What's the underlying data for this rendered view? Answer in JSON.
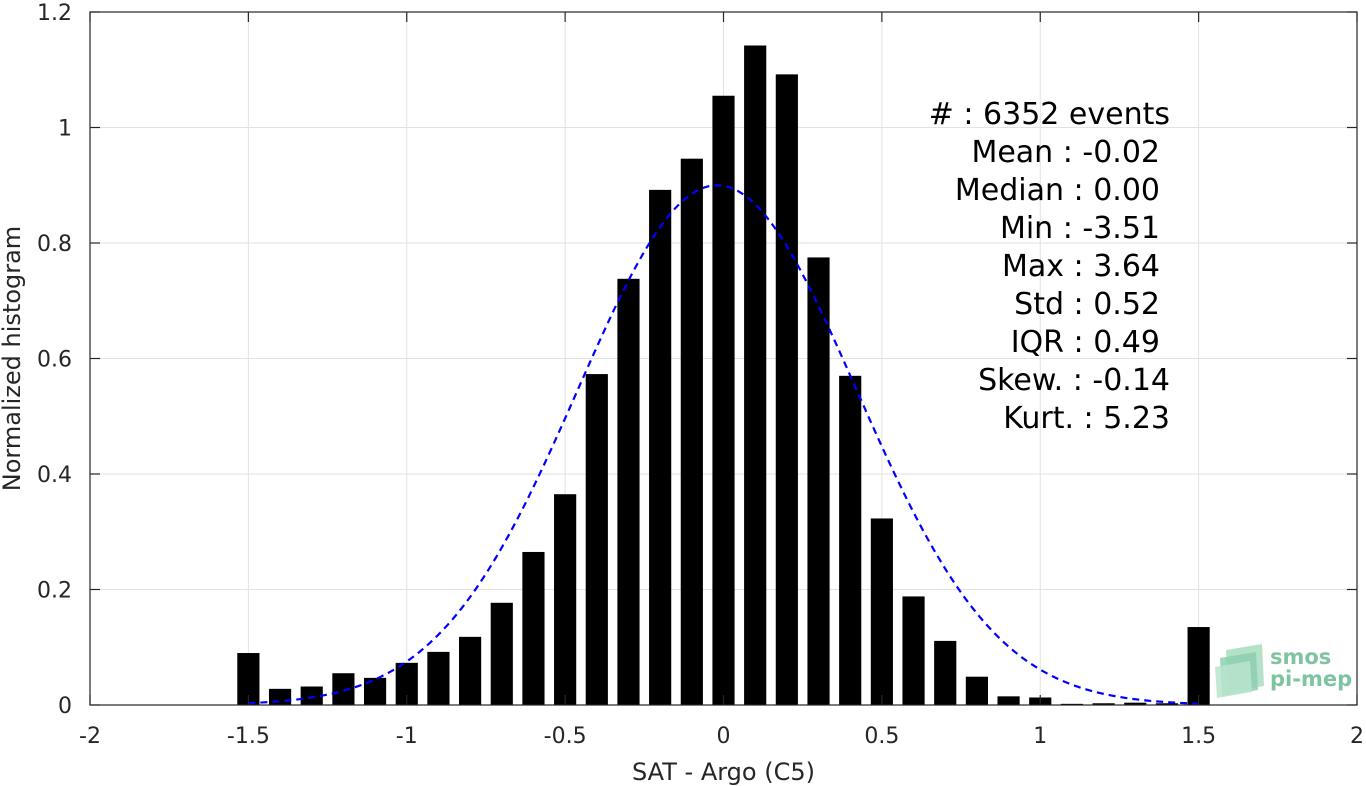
{
  "chart_data": {
    "type": "bar",
    "xlabel": "SAT - Argo (C5)",
    "ylabel": "Normalized histogram",
    "xlim": [
      -2,
      2
    ],
    "ylim": [
      0,
      1.2
    ],
    "xticks": [
      -2,
      -1.5,
      -1,
      -0.5,
      0,
      0.5,
      1,
      1.5,
      2
    ],
    "xtick_labels": [
      "-2",
      "-1.5",
      "-1",
      "-0.5",
      "0",
      "0.5",
      "1",
      "1.5",
      "2"
    ],
    "yticks": [
      0,
      0.2,
      0.4,
      0.6,
      0.8,
      1,
      1.2
    ],
    "ytick_labels": [
      "0",
      "0.2",
      "0.4",
      "0.6",
      "0.8",
      "1",
      "1.2"
    ],
    "grid": true,
    "bar_width": 0.07,
    "bar_color": "#000000",
    "bars": {
      "x": [
        -1.5,
        -1.4,
        -1.3,
        -1.2,
        -1.1,
        -1.0,
        -0.9,
        -0.8,
        -0.7,
        -0.6,
        -0.5,
        -0.4,
        -0.3,
        -0.2,
        -0.1,
        0.0,
        0.1,
        0.2,
        0.3,
        0.4,
        0.5,
        0.6,
        0.7,
        0.8,
        0.9,
        1.0,
        1.1,
        1.2,
        1.3,
        1.4,
        1.5
      ],
      "values": [
        0.09,
        0.028,
        0.032,
        0.055,
        0.047,
        0.073,
        0.092,
        0.118,
        0.177,
        0.265,
        0.365,
        0.573,
        0.738,
        0.892,
        0.946,
        1.055,
        1.142,
        1.092,
        0.775,
        0.57,
        0.323,
        0.188,
        0.111,
        0.049,
        0.015,
        0.013,
        0.002,
        0.003,
        0.004,
        0.003,
        0.135
      ]
    },
    "fit_curve": {
      "style": "dashed",
      "color": "#0000ff",
      "mean": -0.02,
      "std": 0.44,
      "peak": 0.9,
      "x_range": [
        -1.5,
        1.5
      ]
    },
    "stats": [
      "#  : 6352 events",
      "Mean : -0.02",
      "Median : 0.00",
      "Min : -3.51",
      "Max : 3.64",
      "Std : 0.52",
      "IQR : 0.49",
      "Skew. : -0.14",
      "Kurt. : 5.23"
    ],
    "logo": {
      "line1": "smos",
      "line2": "pi-mep",
      "color": "#7fc4a0"
    }
  }
}
